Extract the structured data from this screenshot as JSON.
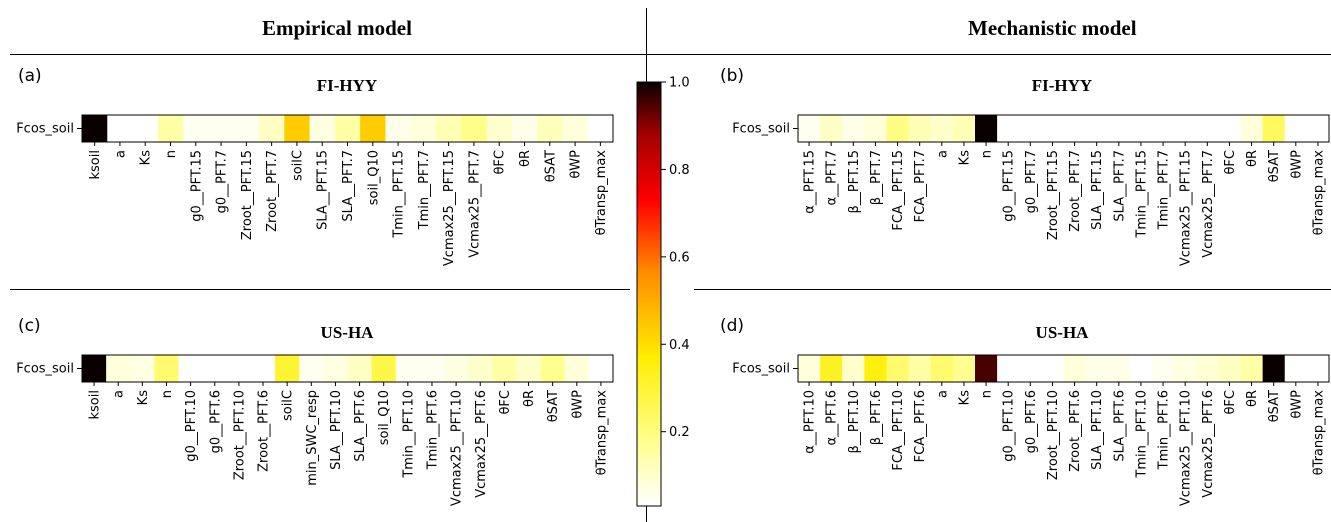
{
  "headers": {
    "left": "Empirical model",
    "right": "Mechanistic model"
  },
  "colorbar": {
    "ticks": [
      "1.0",
      "0.8",
      "0.6",
      "0.4",
      "0.2"
    ],
    "tick_values": [
      1.0,
      0.8,
      0.6,
      0.4,
      0.2
    ],
    "range": [
      0.03,
      1.0
    ],
    "colormap": "hot_r"
  },
  "chart_data": [
    {
      "type": "heatmap",
      "panel_label": "(a)",
      "title": "FI-HYY",
      "row_label": "Fcos_soil",
      "categories": [
        "ksoil",
        "a",
        "Ks",
        "n",
        "g0__PFT.15",
        "g0__PFT.7",
        "Zroot__PFT.15",
        "Zroot__PFT.7",
        "soilC",
        "SLA__PFT.15",
        "SLA__PFT.7",
        "soil_Q10",
        "Tmin__PFT.15",
        "Tmin__PFT.7",
        "Vcmax25__PFT.15",
        "Vcmax25__PFT.7",
        "θFC",
        "θR",
        "θSAT",
        "θWP",
        "θTransp_max"
      ],
      "values": [
        1.0,
        0.0,
        0.0,
        0.12,
        0.02,
        0.02,
        0.02,
        0.08,
        0.42,
        0.04,
        0.12,
        0.42,
        0.03,
        0.05,
        0.1,
        0.16,
        0.07,
        0.03,
        0.09,
        0.05,
        0.0
      ]
    },
    {
      "type": "heatmap",
      "panel_label": "(b)",
      "title": "FI-HYY",
      "row_label": "Fcos_soil",
      "categories": [
        "α__PFT.15",
        "α__PFT.7",
        "β__PFT.15",
        "β__PFT.7",
        "FCA__PFT.15",
        "FCA__PFT.7",
        "a",
        "Ks",
        "n",
        "g0__PFT.15",
        "g0__PFT.7",
        "Zroot__PFT.15",
        "Zroot__PFT.7",
        "SLA__PFT.15",
        "SLA__PFT.7",
        "Tmin__PFT.15",
        "Tmin__PFT.7",
        "Vcmax25__PFT.15",
        "Vcmax25__PFT.7",
        "θFC",
        "θR",
        "θSAT",
        "θWP",
        "θTransp_max"
      ],
      "values": [
        0.02,
        0.08,
        0.03,
        0.05,
        0.17,
        0.1,
        0.07,
        0.1,
        1.0,
        0.0,
        0.0,
        0.0,
        0.0,
        0.0,
        0.0,
        0.0,
        0.0,
        0.0,
        0.0,
        0.0,
        0.05,
        0.22,
        0.0,
        0.0
      ]
    },
    {
      "type": "heatmap",
      "panel_label": "(c)",
      "title": "US-HA",
      "row_label": "Fcos_soil",
      "categories": [
        "ksoil",
        "a",
        "Ks",
        "n",
        "g0__PFT.10",
        "g0__PFT.6",
        "Zroot__PFT.10",
        "Zroot__PFT.6",
        "soilC",
        "min_SWC_resp",
        "SLA__PFT.10",
        "SLA__PFT.6",
        "soil_Q10",
        "Tmin__PFT.10",
        "Tmin__PFT.6",
        "Vcmax25__PFT.10",
        "Vcmax25__PFT.6",
        "θFC",
        "θR",
        "θSAT",
        "θWP",
        "θTransp_max"
      ],
      "values": [
        1.0,
        0.05,
        0.04,
        0.2,
        0.0,
        0.0,
        0.0,
        0.0,
        0.28,
        0.02,
        0.04,
        0.08,
        0.25,
        0.02,
        0.02,
        0.04,
        0.07,
        0.12,
        0.07,
        0.15,
        0.05,
        0.0
      ]
    },
    {
      "type": "heatmap",
      "panel_label": "(d)",
      "title": "US-HA",
      "row_label": "Fcos_soil",
      "categories": [
        "α__PFT.10",
        "α__PFT.6",
        "β__PFT.10",
        "β__PFT.6",
        "FCA__PFT.10",
        "FCA__PFT.6",
        "a",
        "Ks",
        "n",
        "g0__PFT.10",
        "g0__PFT.6",
        "Zroot__PFT.10",
        "Zroot__PFT.6",
        "SLA__PFT.10",
        "SLA__PFT.6",
        "Tmin__PFT.10",
        "Tmin__PFT.6",
        "Vcmax25__PFT.10",
        "Vcmax25__PFT.6",
        "θFC",
        "θR",
        "θSAT",
        "θWP",
        "θTransp_max"
      ],
      "values": [
        0.05,
        0.3,
        0.07,
        0.33,
        0.2,
        0.12,
        0.2,
        0.15,
        0.95,
        0.0,
        0.0,
        0.0,
        0.05,
        0.03,
        0.03,
        0.0,
        0.02,
        0.04,
        0.06,
        0.08,
        0.12,
        1.0,
        0.0,
        0.0
      ]
    }
  ]
}
